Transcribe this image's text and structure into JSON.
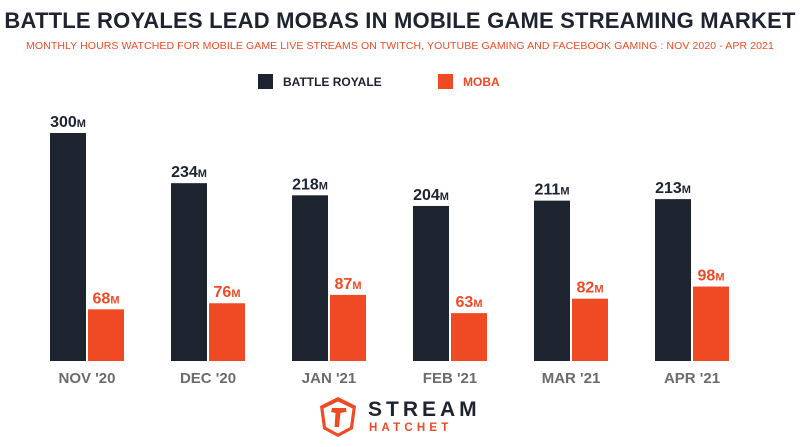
{
  "header": {
    "title": "BATTLE ROYALES LEAD MOBAS IN MOBILE GAME STREAMING MARKET",
    "subtitle": "MONTHLY HOURS WATCHED FOR MOBILE GAME LIVE STREAMS ON TWITCH, YOUTUBE GAMING AND FACEBOOK GAMING : NOV 2020 - APR 2021"
  },
  "legend": {
    "items": [
      {
        "label": "BATTLE ROYALE",
        "color": "#1e2330"
      },
      {
        "label": "MOBA",
        "color": "#f04a25"
      }
    ]
  },
  "chart_data": {
    "type": "bar",
    "categories": [
      "NOV '20",
      "DEC '20",
      "JAN '21",
      "FEB '21",
      "MAR '21",
      "APR '21"
    ],
    "series": [
      {
        "name": "BATTLE ROYALE",
        "values": [
          300,
          234,
          218,
          204,
          211,
          213
        ],
        "labels": [
          "300",
          "234",
          "218",
          "204",
          "211",
          "213"
        ],
        "color": "#1e2330"
      },
      {
        "name": "MOBA",
        "values": [
          68,
          76,
          87,
          63,
          82,
          98
        ],
        "labels": [
          "68",
          "76",
          "87",
          "63",
          "82",
          "98"
        ],
        "color": "#f04a25"
      }
    ],
    "value_suffix": "M",
    "ylim": [
      0,
      300
    ],
    "grid": false
  },
  "branding": {
    "logo_line1": "STREAM",
    "logo_line2": "HATCHET",
    "logo_icon": "hatchet-badge-icon"
  }
}
